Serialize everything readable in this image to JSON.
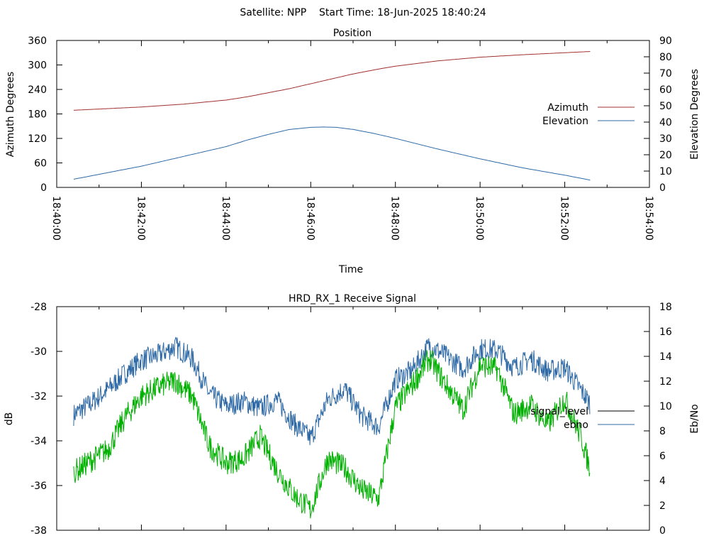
{
  "header": {
    "title": "Satellite: NPP    Start Time: 18-Jun-2025 18:40:24"
  },
  "chart_data": [
    {
      "type": "line",
      "title": "Position",
      "xlabel": "Time",
      "ylabel": "Azimuth Degrees",
      "y2label": "Elevation Degrees",
      "x_ticks": [
        "18:40:00",
        "18:42:00",
        "18:44:00",
        "18:46:00",
        "18:48:00",
        "18:50:00",
        "18:52:00",
        "18:54:00"
      ],
      "x_range_minutes": [
        0,
        14
      ],
      "ylim": [
        0,
        360
      ],
      "y_ticks": [
        0,
        60,
        120,
        180,
        240,
        300,
        360
      ],
      "y2lim": [
        0,
        90
      ],
      "y2_ticks": [
        0,
        10,
        20,
        30,
        40,
        50,
        60,
        70,
        80,
        90
      ],
      "legend_position": "right",
      "series": [
        {
          "name": "Azimuth",
          "axis": "y",
          "color": "#a0302f",
          "x_minutes": [
            0.4,
            1,
            2,
            3,
            4,
            4.5,
            5,
            5.5,
            6,
            6.5,
            7,
            7.5,
            8,
            9,
            10,
            11,
            12,
            12.6
          ],
          "values": [
            189,
            192,
            197,
            204,
            214,
            222,
            232,
            242,
            254,
            266,
            278,
            288,
            297,
            310,
            319,
            325,
            330,
            333
          ]
        },
        {
          "name": "Elevation",
          "axis": "y2",
          "color": "#2f6aa6",
          "x_minutes": [
            0.4,
            1,
            2,
            3,
            4,
            4.5,
            5,
            5.5,
            6,
            6.3,
            6.6,
            7,
            7.5,
            8,
            9,
            10,
            11,
            12,
            12.6
          ],
          "values": [
            5,
            8,
            13,
            19,
            25,
            29,
            32.5,
            35.5,
            36.8,
            37,
            36.8,
            35.5,
            33,
            30,
            23.5,
            17.5,
            12,
            7.5,
            4.5
          ]
        }
      ]
    },
    {
      "type": "line",
      "title": "HRD_RX_1 Receive Signal",
      "ylabel": "dB",
      "y2label": "Eb/No",
      "x_range_minutes": [
        0,
        14
      ],
      "ylim": [
        -38,
        -28
      ],
      "y_ticks": [
        -38,
        -36,
        -34,
        -32,
        -30,
        -28
      ],
      "y2lim": [
        0,
        18
      ],
      "y2_ticks": [
        0,
        2,
        4,
        6,
        8,
        10,
        12,
        14,
        16,
        18
      ],
      "legend_position": "right",
      "series": [
        {
          "name": "signal_level",
          "axis": "y",
          "color": "#000000",
          "legend_only": true,
          "x_minutes": [],
          "values": []
        },
        {
          "name": "ebno",
          "axis": "y2",
          "color": "#2f6aa6",
          "x_minutes": [
            0.4,
            0.8,
            1.2,
            1.6,
            2.0,
            2.4,
            2.8,
            3.2,
            3.6,
            4.0,
            4.4,
            4.8,
            5.2,
            5.6,
            6.0,
            6.4,
            6.8,
            7.2,
            7.6,
            8.0,
            8.4,
            8.8,
            9.2,
            9.6,
            10.0,
            10.4,
            10.8,
            11.2,
            11.6,
            12.0,
            12.4,
            12.6
          ],
          "values": [
            9.3,
            10.2,
            11.3,
            12.6,
            13.7,
            14.1,
            14.8,
            13.8,
            11.0,
            10.0,
            10.4,
            9.8,
            10.5,
            8.6,
            7.4,
            10.5,
            11.4,
            9.2,
            8.3,
            12.1,
            12.9,
            14.9,
            14.0,
            13.0,
            14.6,
            14.5,
            13.1,
            13.8,
            12.8,
            13.1,
            11.2,
            10.2
          ]
        },
        {
          "name": "",
          "axis": "y",
          "color": "#00b000",
          "x_minutes": [
            0.4,
            0.8,
            1.2,
            1.6,
            2.0,
            2.4,
            2.8,
            3.2,
            3.6,
            4.0,
            4.4,
            4.8,
            5.2,
            5.6,
            6.0,
            6.4,
            6.8,
            7.2,
            7.6,
            8.0,
            8.4,
            8.8,
            9.2,
            9.6,
            10.0,
            10.4,
            10.8,
            11.2,
            11.6,
            12.0,
            12.4,
            12.6
          ],
          "values": [
            -35.4,
            -34.9,
            -34.4,
            -33.0,
            -32.0,
            -31.6,
            -31.3,
            -32.0,
            -34.2,
            -35.0,
            -34.8,
            -33.8,
            -35.3,
            -36.4,
            -37.1,
            -34.8,
            -35.2,
            -36.2,
            -36.6,
            -32.5,
            -31.5,
            -30.3,
            -31.5,
            -32.6,
            -30.6,
            -30.8,
            -32.8,
            -32.4,
            -33.3,
            -32.1,
            -33.9,
            -35.3
          ]
        }
      ]
    }
  ]
}
